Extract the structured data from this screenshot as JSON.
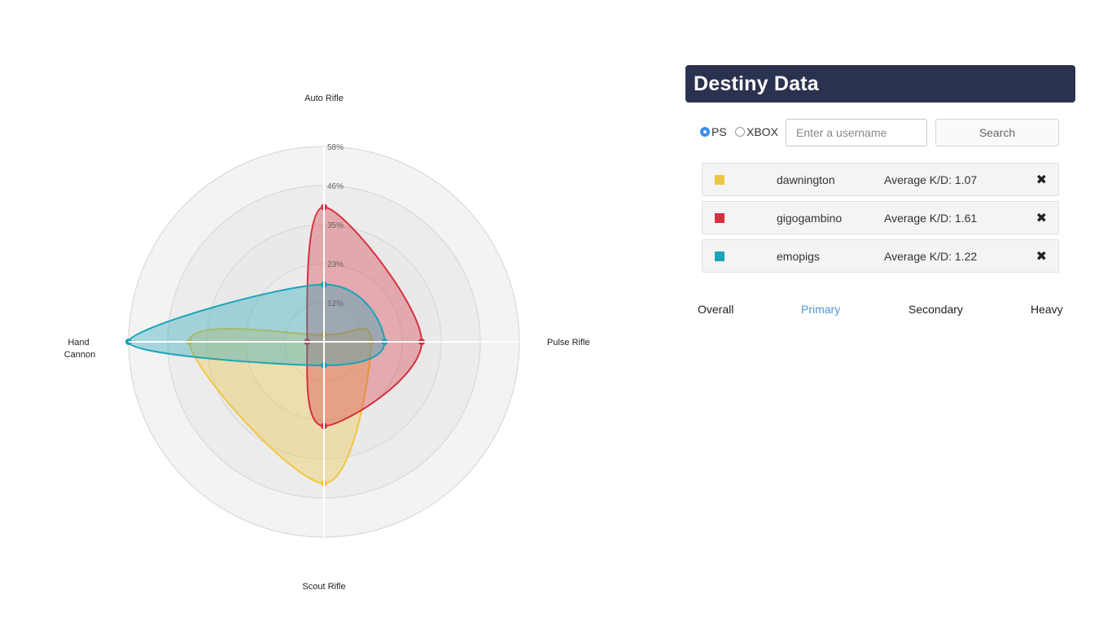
{
  "chart_data": {
    "type": "radar",
    "axes": [
      "Auto Rifle",
      "Pulse Rifle",
      "Scout Rifle",
      "Hand Cannon"
    ],
    "ring_labels": [
      "12%",
      "23%",
      "35%",
      "46%",
      "58%"
    ],
    "rmax": 58,
    "series": [
      {
        "name": "dawnington",
        "color": "#f0c63e",
        "values": [
          2,
          14,
          42,
          40
        ]
      },
      {
        "name": "gigogambino",
        "color": "#d6303e",
        "values": [
          40,
          29,
          25,
          5
        ]
      },
      {
        "name": "emopigs",
        "color": "#1aa3b6",
        "values": [
          17,
          18,
          7,
          58
        ]
      }
    ]
  },
  "panel": {
    "title": "Destiny Data",
    "platforms": [
      {
        "label": "PS",
        "checked": true
      },
      {
        "label": "XBOX",
        "checked": false
      }
    ],
    "username_placeholder": "Enter a username",
    "search_label": "Search"
  },
  "players": [
    {
      "name": "dawnington",
      "kd": "Average K/D: 1.07",
      "color": "#f0c63e",
      "remove": "✖"
    },
    {
      "name": "gigogambino",
      "kd": "Average K/D: 1.61",
      "color": "#d6303e",
      "remove": "✖"
    },
    {
      "name": "emopigs",
      "kd": "Average K/D: 1.22",
      "color": "#1aa3b6",
      "remove": "✖"
    }
  ],
  "tabs": [
    {
      "label": "Overall",
      "active": false
    },
    {
      "label": "Primary",
      "active": true
    },
    {
      "label": "Secondary",
      "active": false
    },
    {
      "label": "Heavy",
      "active": false
    }
  ]
}
